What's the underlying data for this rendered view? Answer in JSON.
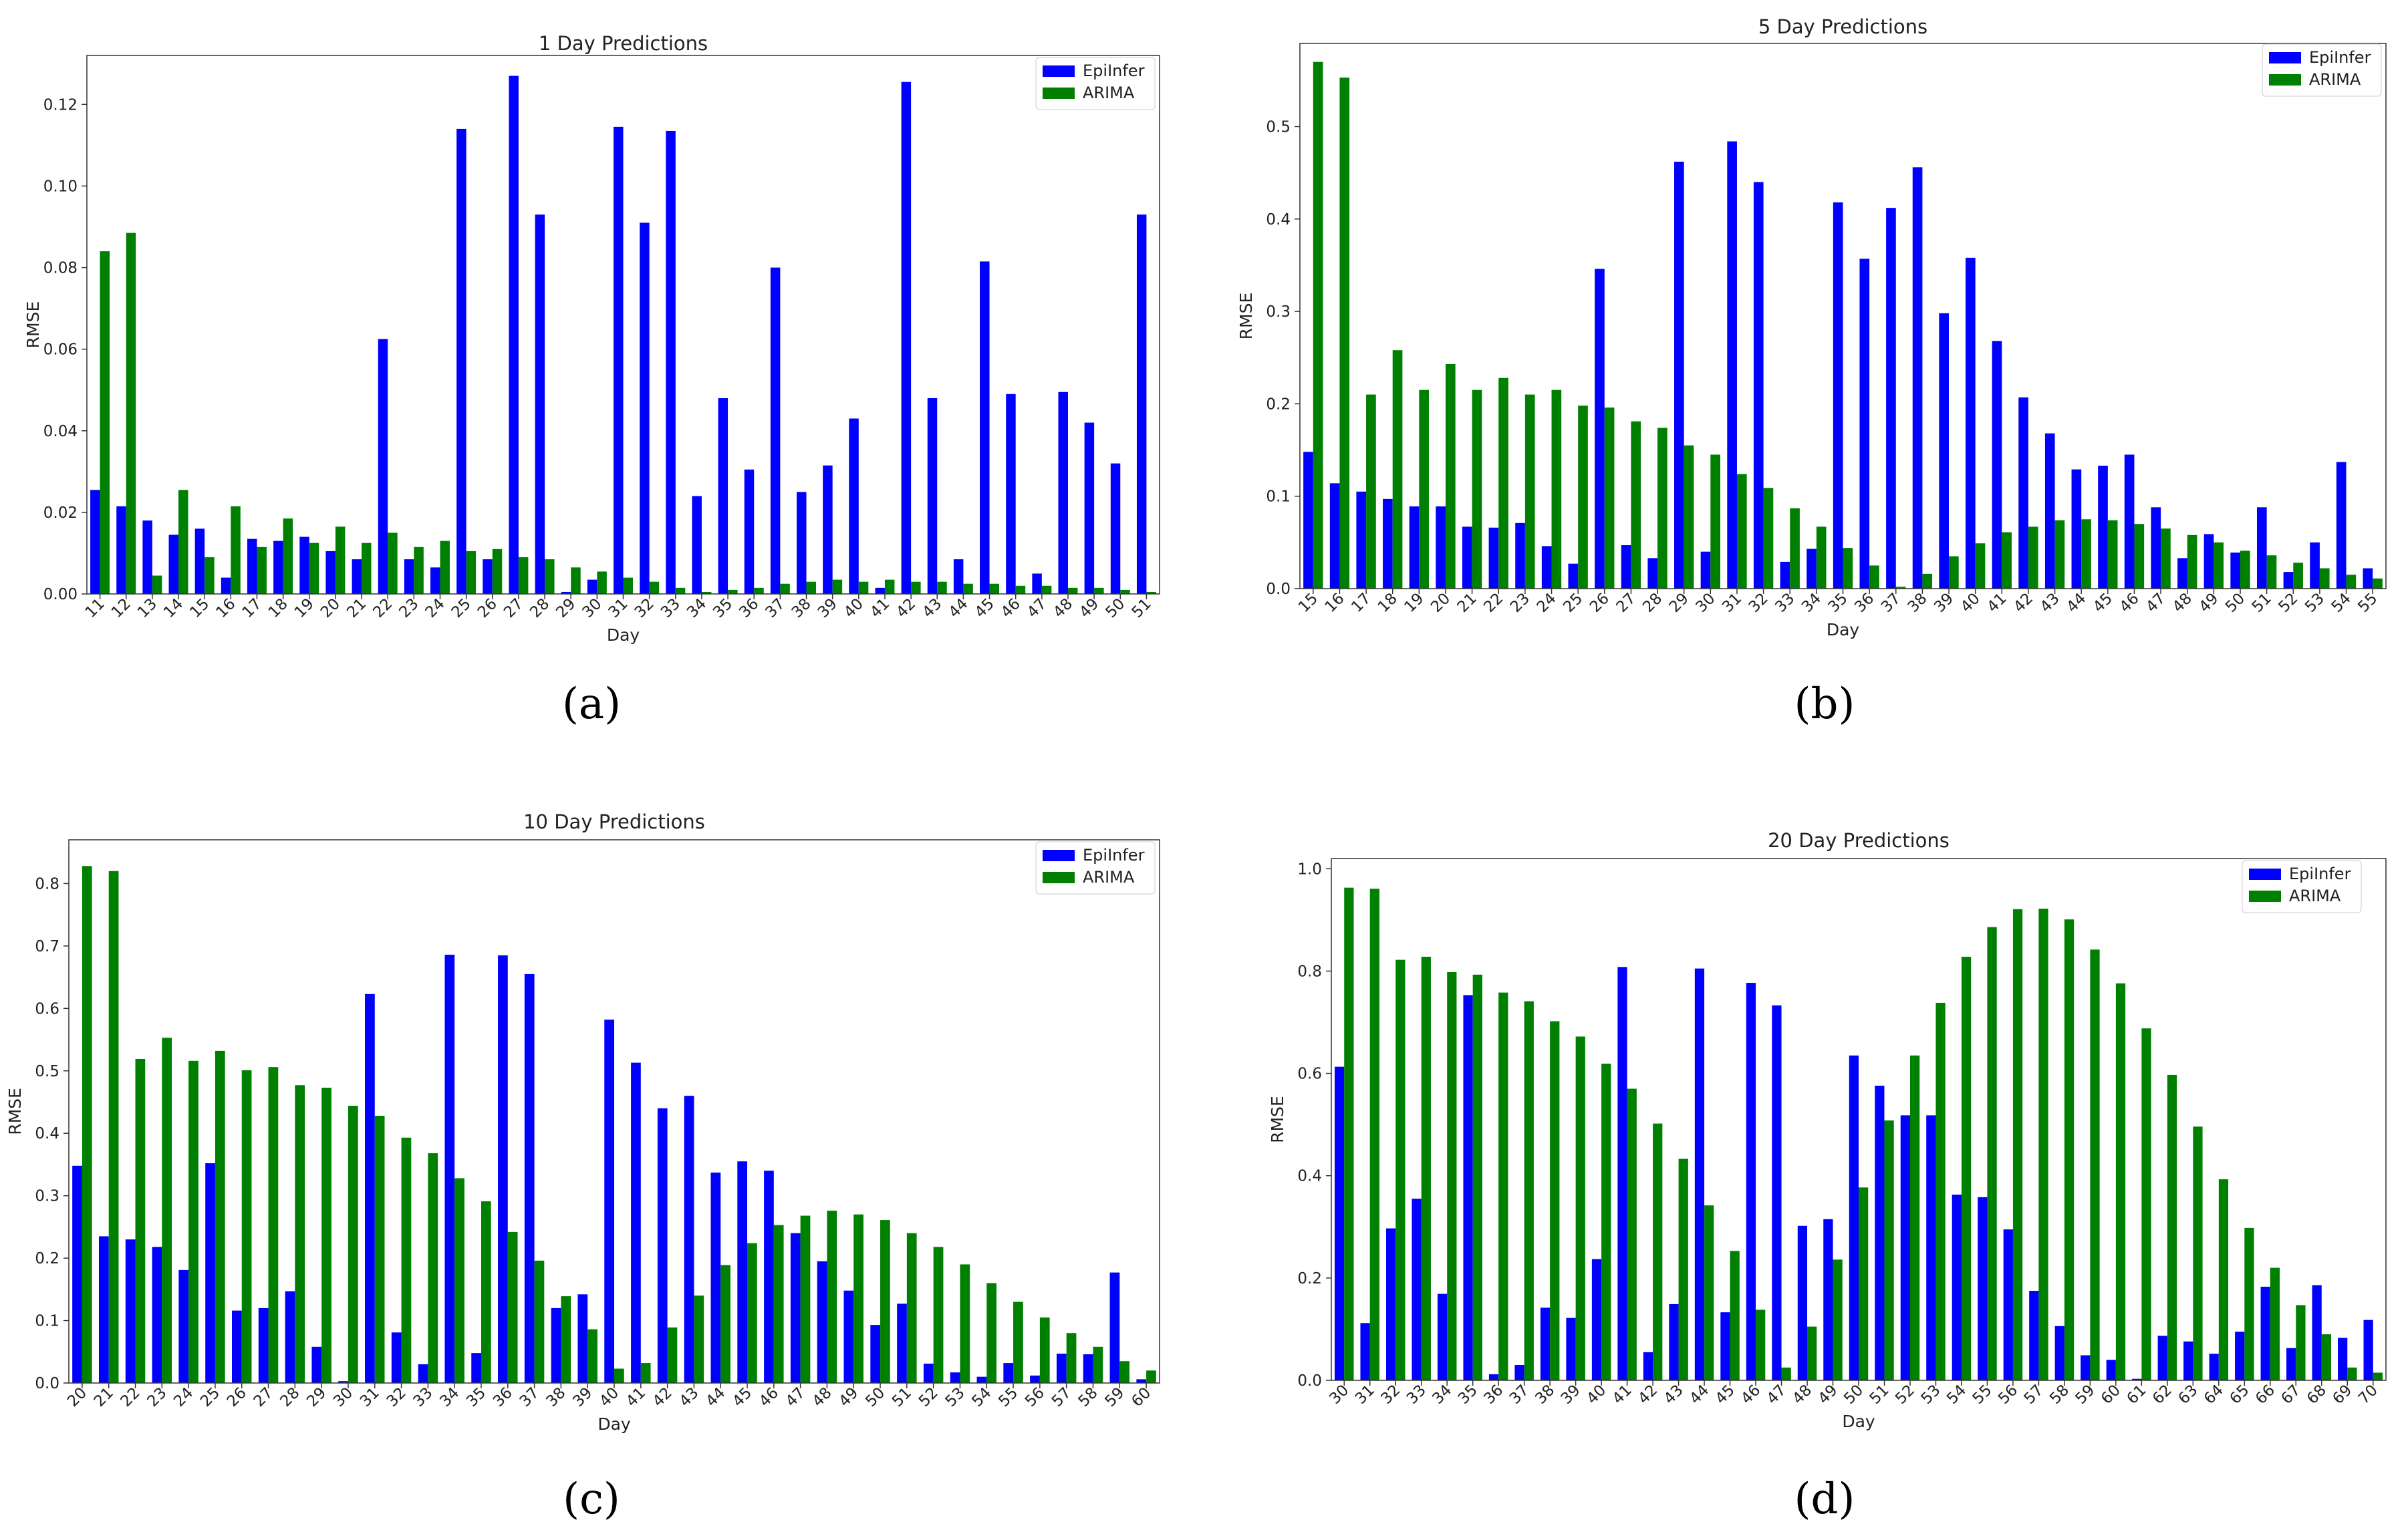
{
  "figure": {
    "colors": {
      "epiinfer": "#0000ff",
      "arima": "#008000"
    }
  },
  "chart_data": [
    {
      "type": "bar",
      "panel_label": "(a)",
      "title": "1 Day Predictions",
      "xlabel": "Day",
      "ylabel": "RMSE",
      "ylim": [
        0,
        0.132
      ],
      "yticks": [
        "0.00",
        "0.02",
        "0.04",
        "0.06",
        "0.08",
        "0.10",
        "0.12"
      ],
      "legend_position": "top-right",
      "categories": [
        "11",
        "12",
        "13",
        "14",
        "15",
        "16",
        "17",
        "18",
        "19",
        "20",
        "21",
        "22",
        "23",
        "24",
        "25",
        "26",
        "27",
        "28",
        "29",
        "30",
        "31",
        "32",
        "33",
        "34",
        "35",
        "36",
        "37",
        "38",
        "39",
        "40",
        "41",
        "42",
        "43",
        "44",
        "45",
        "46",
        "47",
        "48",
        "49",
        "50",
        "51"
      ],
      "series": [
        {
          "name": "EpiInfer",
          "values": [
            0.0255,
            0.0215,
            0.018,
            0.0145,
            0.016,
            0.004,
            0.0135,
            0.013,
            0.014,
            0.0105,
            0.0085,
            0.0625,
            0.0085,
            0.0065,
            0.114,
            0.0085,
            0.127,
            0.093,
            0.0005,
            0.0035,
            0.1145,
            0.091,
            0.1135,
            0.024,
            0.048,
            0.0305,
            0.08,
            0.025,
            0.0315,
            0.043,
            0.0015,
            0.1255,
            0.048,
            0.0085,
            0.0815,
            0.049,
            0.005,
            0.0495,
            0.042,
            0.032,
            0.093
          ]
        },
        {
          "name": "ARIMA",
          "values": [
            0.084,
            0.0885,
            0.0045,
            0.0255,
            0.009,
            0.0215,
            0.0115,
            0.0185,
            0.0125,
            0.0165,
            0.0125,
            0.015,
            0.0115,
            0.013,
            0.0105,
            0.011,
            0.009,
            0.0085,
            0.0065,
            0.0055,
            0.004,
            0.003,
            0.0015,
            0.0005,
            0.001,
            0.0015,
            0.0025,
            0.003,
            0.0035,
            0.003,
            0.0035,
            0.003,
            0.003,
            0.0025,
            0.0025,
            0.002,
            0.002,
            0.0015,
            0.0015,
            0.001,
            0.0005
          ]
        }
      ]
    },
    {
      "type": "bar",
      "panel_label": "(b)",
      "title": "5 Day Predictions",
      "xlabel": "Day",
      "ylabel": "RMSE",
      "ylim": [
        0,
        0.59
      ],
      "yticks": [
        "0.0",
        "0.1",
        "0.2",
        "0.3",
        "0.4",
        "0.5"
      ],
      "legend_position": "top-right",
      "categories": [
        "15",
        "16",
        "17",
        "18",
        "19",
        "20",
        "21",
        "22",
        "23",
        "24",
        "25",
        "26",
        "27",
        "28",
        "29",
        "30",
        "31",
        "32",
        "33",
        "34",
        "35",
        "36",
        "37",
        "38",
        "39",
        "40",
        "41",
        "42",
        "43",
        "44",
        "45",
        "46",
        "47",
        "48",
        "49",
        "50",
        "51",
        "52",
        "53",
        "54",
        "55"
      ],
      "series": [
        {
          "name": "EpiInfer",
          "values": [
            0.148,
            0.114,
            0.105,
            0.097,
            0.089,
            0.089,
            0.067,
            0.066,
            0.071,
            0.046,
            0.027,
            0.346,
            0.047,
            0.033,
            0.462,
            0.04,
            0.484,
            0.44,
            0.029,
            0.043,
            0.418,
            0.357,
            0.412,
            0.456,
            0.298,
            0.358,
            0.268,
            0.207,
            0.168,
            0.129,
            0.133,
            0.145,
            0.088,
            0.033,
            0.059,
            0.039,
            0.088,
            0.018,
            0.05,
            0.137,
            0.022
          ]
        },
        {
          "name": "ARIMA",
          "values": [
            0.57,
            0.553,
            0.21,
            0.258,
            0.215,
            0.243,
            0.215,
            0.228,
            0.21,
            0.215,
            0.198,
            0.196,
            0.181,
            0.174,
            0.155,
            0.145,
            0.124,
            0.109,
            0.087,
            0.067,
            0.044,
            0.025,
            0.002,
            0.016,
            0.035,
            0.049,
            0.061,
            0.067,
            0.074,
            0.075,
            0.074,
            0.07,
            0.065,
            0.058,
            0.05,
            0.041,
            0.036,
            0.028,
            0.022,
            0.015,
            0.011
          ]
        }
      ]
    },
    {
      "type": "bar",
      "panel_label": "(c)",
      "title": "10 Day Predictions",
      "xlabel": "Day",
      "ylabel": "RMSE",
      "ylim": [
        0,
        0.87
      ],
      "yticks": [
        "0.0",
        "0.1",
        "0.2",
        "0.3",
        "0.4",
        "0.5",
        "0.6",
        "0.7",
        "0.8"
      ],
      "legend_position": "top-right",
      "categories": [
        "20",
        "21",
        "22",
        "23",
        "24",
        "25",
        "26",
        "27",
        "28",
        "29",
        "30",
        "31",
        "32",
        "33",
        "34",
        "35",
        "36",
        "37",
        "38",
        "39",
        "40",
        "41",
        "42",
        "43",
        "44",
        "45",
        "46",
        "47",
        "48",
        "49",
        "50",
        "51",
        "52",
        "53",
        "54",
        "55",
        "56",
        "57",
        "58",
        "59",
        "60"
      ],
      "series": [
        {
          "name": "EpiInfer",
          "values": [
            0.348,
            0.235,
            0.23,
            0.218,
            0.181,
            0.352,
            0.116,
            0.12,
            0.147,
            0.058,
            0.003,
            0.623,
            0.081,
            0.03,
            0.686,
            0.048,
            0.685,
            0.655,
            0.12,
            0.142,
            0.582,
            0.513,
            0.44,
            0.46,
            0.337,
            0.355,
            0.34,
            0.24,
            0.195,
            0.148,
            0.093,
            0.127,
            0.031,
            0.017,
            0.01,
            0.032,
            0.012,
            0.047,
            0.046,
            0.177,
            0.006
          ]
        },
        {
          "name": "ARIMA",
          "values": [
            0.828,
            0.82,
            0.519,
            0.553,
            0.516,
            0.532,
            0.501,
            0.506,
            0.477,
            0.473,
            0.444,
            0.428,
            0.393,
            0.368,
            0.328,
            0.291,
            0.242,
            0.196,
            0.139,
            0.086,
            0.023,
            0.032,
            0.089,
            0.14,
            0.189,
            0.224,
            0.253,
            0.268,
            0.276,
            0.27,
            0.261,
            0.24,
            0.218,
            0.19,
            0.16,
            0.13,
            0.105,
            0.08,
            0.058,
            0.035,
            0.02
          ]
        }
      ]
    },
    {
      "type": "bar",
      "panel_label": "(d)",
      "title": "20 Day Predictions",
      "xlabel": "Day",
      "ylabel": "RMSE",
      "ylim": [
        0,
        1.02
      ],
      "yticks": [
        "0.0",
        "0.2",
        "0.4",
        "0.6",
        "0.8",
        "1.0"
      ],
      "legend_position": "top-right",
      "categories": [
        "30",
        "31",
        "32",
        "33",
        "34",
        "35",
        "36",
        "37",
        "38",
        "39",
        "40",
        "41",
        "42",
        "43",
        "44",
        "45",
        "46",
        "47",
        "48",
        "49",
        "50",
        "51",
        "52",
        "53",
        "54",
        "55",
        "56",
        "57",
        "58",
        "59",
        "60",
        "61",
        "62",
        "63",
        "64",
        "65",
        "66",
        "67",
        "68",
        "69",
        "70"
      ],
      "series": [
        {
          "name": "EpiInfer",
          "values": [
            0.613,
            0.112,
            0.297,
            0.355,
            0.169,
            0.753,
            0.012,
            0.03,
            0.142,
            0.122,
            0.237,
            0.808,
            0.055,
            0.149,
            0.805,
            0.133,
            0.777,
            0.733,
            0.302,
            0.315,
            0.635,
            0.576,
            0.518,
            0.518,
            0.363,
            0.358,
            0.295,
            0.175,
            0.106,
            0.049,
            0.04,
            0.003,
            0.087,
            0.076,
            0.052,
            0.095,
            0.183,
            0.063,
            0.186,
            0.083,
            0.118
          ]
        },
        {
          "name": "ARIMA",
          "values": [
            0.963,
            0.961,
            0.822,
            0.828,
            0.798,
            0.793,
            0.758,
            0.741,
            0.702,
            0.672,
            0.619,
            0.57,
            0.502,
            0.433,
            0.342,
            0.253,
            0.138,
            0.025,
            0.105,
            0.236,
            0.377,
            0.508,
            0.635,
            0.738,
            0.828,
            0.886,
            0.921,
            0.922,
            0.901,
            0.842,
            0.776,
            0.688,
            0.597,
            0.496,
            0.393,
            0.298,
            0.22,
            0.147,
            0.09,
            0.025,
            0.015
          ]
        }
      ]
    }
  ]
}
